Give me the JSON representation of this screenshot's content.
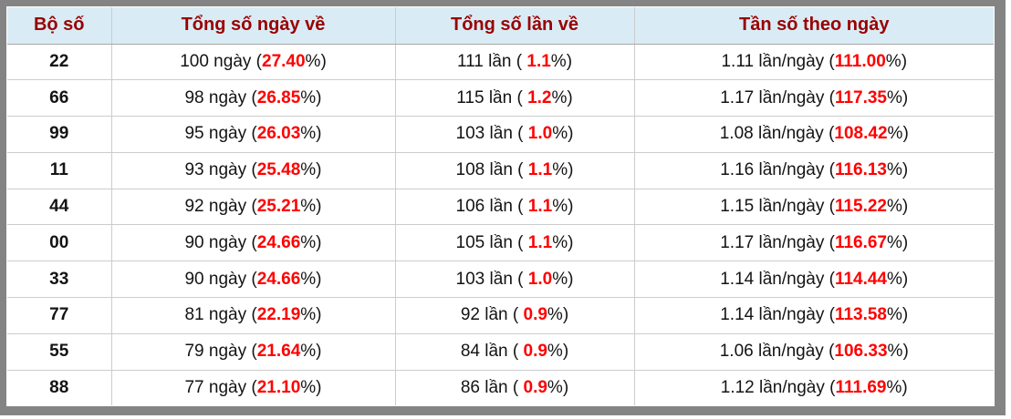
{
  "table": {
    "headers": [
      {
        "label": "Bộ số"
      },
      {
        "label": "Tổng số ngày về"
      },
      {
        "label": "Tổng số lần về"
      },
      {
        "label": "Tần số theo ngày"
      }
    ],
    "rows": [
      {
        "pair": "22",
        "days": {
          "pre": "100 ngày (",
          "hl": "27.40",
          "post": "%)"
        },
        "times": {
          "pre": "111 lần ( ",
          "hl": "1.1",
          "post": "%)"
        },
        "freq": {
          "pre": "1.11 lần/ngày (",
          "hl": "111.00",
          "post": "%)"
        }
      },
      {
        "pair": "66",
        "days": {
          "pre": "98 ngày (",
          "hl": "26.85",
          "post": "%)"
        },
        "times": {
          "pre": "115 lần ( ",
          "hl": "1.2",
          "post": "%)"
        },
        "freq": {
          "pre": "1.17 lần/ngày (",
          "hl": "117.35",
          "post": "%)"
        }
      },
      {
        "pair": "99",
        "days": {
          "pre": "95 ngày (",
          "hl": "26.03",
          "post": "%)"
        },
        "times": {
          "pre": "103 lần ( ",
          "hl": "1.0",
          "post": "%)"
        },
        "freq": {
          "pre": "1.08 lần/ngày (",
          "hl": "108.42",
          "post": "%)"
        }
      },
      {
        "pair": "11",
        "days": {
          "pre": "93 ngày (",
          "hl": "25.48",
          "post": "%)"
        },
        "times": {
          "pre": "108 lần ( ",
          "hl": "1.1",
          "post": "%)"
        },
        "freq": {
          "pre": "1.16 lần/ngày (",
          "hl": "116.13",
          "post": "%)"
        }
      },
      {
        "pair": "44",
        "days": {
          "pre": "92 ngày (",
          "hl": "25.21",
          "post": "%)"
        },
        "times": {
          "pre": "106 lần ( ",
          "hl": "1.1",
          "post": "%)"
        },
        "freq": {
          "pre": "1.15 lần/ngày (",
          "hl": "115.22",
          "post": "%)"
        }
      },
      {
        "pair": "00",
        "days": {
          "pre": "90 ngày (",
          "hl": "24.66",
          "post": "%)"
        },
        "times": {
          "pre": "105 lần ( ",
          "hl": "1.1",
          "post": "%)"
        },
        "freq": {
          "pre": "1.17 lần/ngày (",
          "hl": "116.67",
          "post": "%)"
        }
      },
      {
        "pair": "33",
        "days": {
          "pre": "90 ngày (",
          "hl": "24.66",
          "post": "%)"
        },
        "times": {
          "pre": "103 lần ( ",
          "hl": "1.0",
          "post": "%)"
        },
        "freq": {
          "pre": "1.14 lần/ngày (",
          "hl": "114.44",
          "post": "%)"
        }
      },
      {
        "pair": "77",
        "days": {
          "pre": "81 ngày (",
          "hl": "22.19",
          "post": "%)"
        },
        "times": {
          "pre": "92 lần ( ",
          "hl": "0.9",
          "post": "%)"
        },
        "freq": {
          "pre": "1.14 lần/ngày (",
          "hl": "113.58",
          "post": "%)"
        }
      },
      {
        "pair": "55",
        "days": {
          "pre": "79 ngày (",
          "hl": "21.64",
          "post": "%)"
        },
        "times": {
          "pre": "84 lần ( ",
          "hl": "0.9",
          "post": "%)"
        },
        "freq": {
          "pre": "1.06 lần/ngày (",
          "hl": "106.33",
          "post": "%)"
        }
      },
      {
        "pair": "88",
        "days": {
          "pre": "77 ngày (",
          "hl": "21.10",
          "post": "%)"
        },
        "times": {
          "pre": "86 lần ( ",
          "hl": "0.9",
          "post": "%)"
        },
        "freq": {
          "pre": "1.12 lần/ngày (",
          "hl": "111.69",
          "post": "%)"
        }
      }
    ]
  },
  "colors": {
    "frame_gray": "#848484",
    "header_bg": "#d9ecf5",
    "header_text": "#990000",
    "highlight_red": "#ff0000",
    "body_text": "#141414",
    "grid_line": "#cccccc",
    "header_rule": "#a8a8a8"
  }
}
